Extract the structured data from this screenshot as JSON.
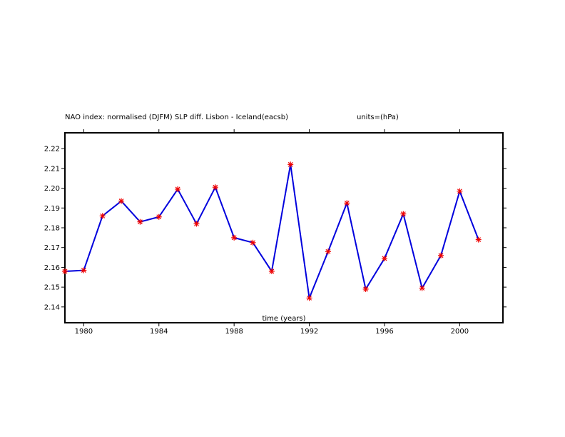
{
  "chart_data": {
    "type": "line",
    "title": "NAO index: normalised (DJFM) SLP diff. Lisbon - Iceland(eacsb)",
    "units_label": "units=(hPa)",
    "xlabel": "time (years)",
    "ylabel": "",
    "xlim": [
      1979,
      2002.3
    ],
    "ylim": [
      2.132,
      2.228
    ],
    "x_ticks": [
      1980,
      1984,
      1988,
      1992,
      1996,
      2000
    ],
    "y_ticks": [
      2.14,
      2.15,
      2.16,
      2.17,
      2.18,
      2.19,
      2.2,
      2.21,
      2.22
    ],
    "y_tick_labels": [
      "2.14",
      "2.15",
      "2.16",
      "2.17",
      "2.18",
      "2.19",
      "2.20",
      "2.21",
      "2.22"
    ],
    "grid": false,
    "line_color": "#0000dd",
    "marker_color": "#ee0000",
    "x": [
      1979,
      1980,
      1981,
      1982,
      1983,
      1984,
      1985,
      1986,
      1987,
      1988,
      1989,
      1990,
      1991,
      1992,
      1993,
      1994,
      1995,
      1996,
      1997,
      1998,
      1999,
      2000,
      2001
    ],
    "series": [
      {
        "values": [
          2.158,
          2.1585,
          2.186,
          2.1935,
          2.183,
          2.1855,
          2.1995,
          2.182,
          2.2005,
          2.175,
          2.1725,
          2.158,
          2.212,
          2.1445,
          2.168,
          2.1925,
          2.149,
          2.1645,
          2.187,
          2.1495,
          2.166,
          2.1985,
          2.174
        ]
      }
    ]
  }
}
